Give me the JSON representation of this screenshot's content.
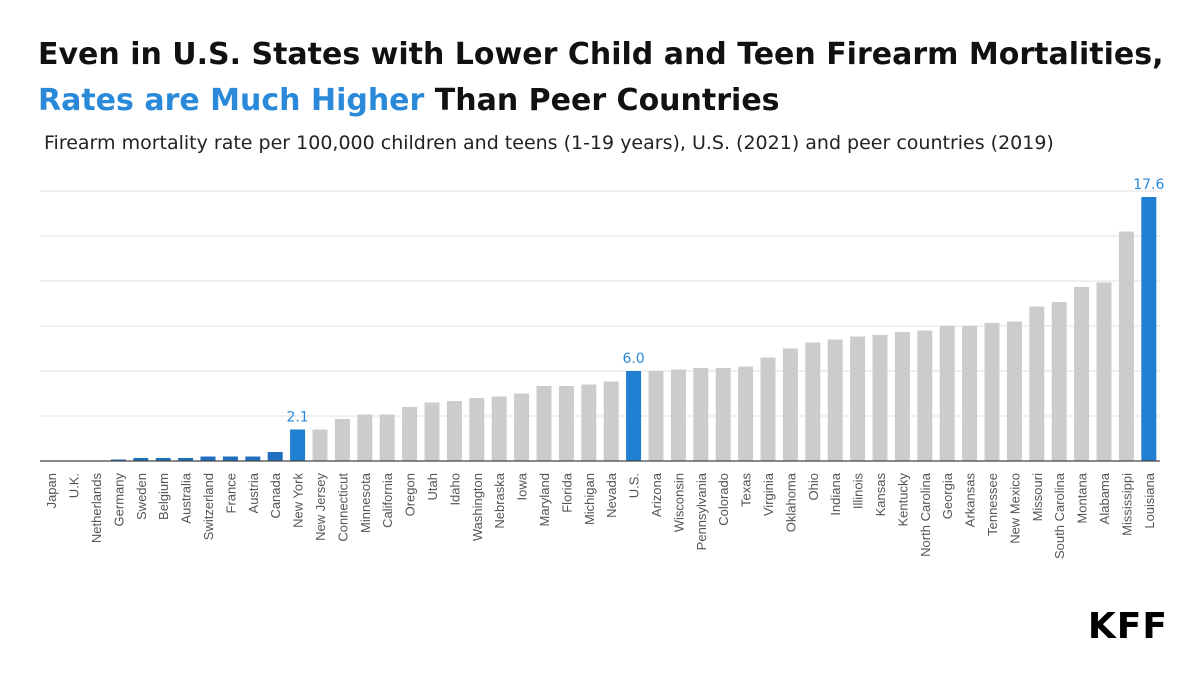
{
  "header": {
    "title_line1": "Even in U.S. States with Lower Child and Teen Firearm Mortalities,",
    "title_highlight": "Rates are Much Higher",
    "title_rest": " Than Peer Countries",
    "subtitle": "Firearm mortality rate per 100,000 children and teens (1-19 years), U.S. (2021) and peer countries (2019)"
  },
  "logo": "KFF",
  "colors": {
    "highlight": "#1f7fd1",
    "peer": "#1f6fc0",
    "state": "#cccccc",
    "grid": "#e2e2e2",
    "label_accent": "#2a89d8"
  },
  "chart_data": {
    "type": "bar",
    "categories": [
      "Japan",
      "U.K.",
      "Netherlands",
      "Germany",
      "Sweden",
      "Belgium",
      "Australia",
      "Switzerland",
      "France",
      "Austria",
      "Canada",
      "New York",
      "New Jersey",
      "Connecticut",
      "Minnesota",
      "California",
      "Oregon",
      "Utah",
      "Idaho",
      "Washington",
      "Nebraska",
      "Iowa",
      "Maryland",
      "Florida",
      "Michigan",
      "Nevada",
      "U.S.",
      "Arizona",
      "Wisconsin",
      "Pennsylvania",
      "Colorado",
      "Texas",
      "Virginia",
      "Oklahoma",
      "Ohio",
      "Indiana",
      "Illinois",
      "Kansas",
      "Kentucky",
      "North Carolina",
      "Georgia",
      "Arkansas",
      "Tennessee",
      "New Mexico",
      "Missouri",
      "South Carolina",
      "Montana",
      "Alabama",
      "Mississippi",
      "Louisiana"
    ],
    "values": [
      0.0,
      0.0,
      0.0,
      0.1,
      0.2,
      0.2,
      0.2,
      0.3,
      0.3,
      0.3,
      0.6,
      2.1,
      2.1,
      2.8,
      3.1,
      3.1,
      3.6,
      3.9,
      4.0,
      4.2,
      4.3,
      4.5,
      5.0,
      5.0,
      5.1,
      5.3,
      6.0,
      6.0,
      6.1,
      6.2,
      6.2,
      6.3,
      6.9,
      7.5,
      7.9,
      8.1,
      8.3,
      8.4,
      8.6,
      8.7,
      9.0,
      9.0,
      9.2,
      9.3,
      10.3,
      10.6,
      11.6,
      11.9,
      15.3,
      17.6
    ],
    "groups": [
      "peer",
      "peer",
      "peer",
      "peer",
      "peer",
      "peer",
      "peer",
      "peer",
      "peer",
      "peer",
      "peer",
      "highlight",
      "state",
      "state",
      "state",
      "state",
      "state",
      "state",
      "state",
      "state",
      "state",
      "state",
      "state",
      "state",
      "state",
      "state",
      "highlight",
      "state",
      "state",
      "state",
      "state",
      "state",
      "state",
      "state",
      "state",
      "state",
      "state",
      "state",
      "state",
      "state",
      "state",
      "state",
      "state",
      "state",
      "state",
      "state",
      "state",
      "state",
      "state",
      "highlight"
    ],
    "value_labels": {
      "New York": "2.1",
      "U.S.": "6.0",
      "Louisiana": "17.6"
    },
    "ylim": [
      0,
      18
    ],
    "grid": true,
    "gridlines": [
      0,
      3,
      6,
      9,
      12,
      15,
      18
    ],
    "xlabel": "",
    "ylabel": ""
  }
}
